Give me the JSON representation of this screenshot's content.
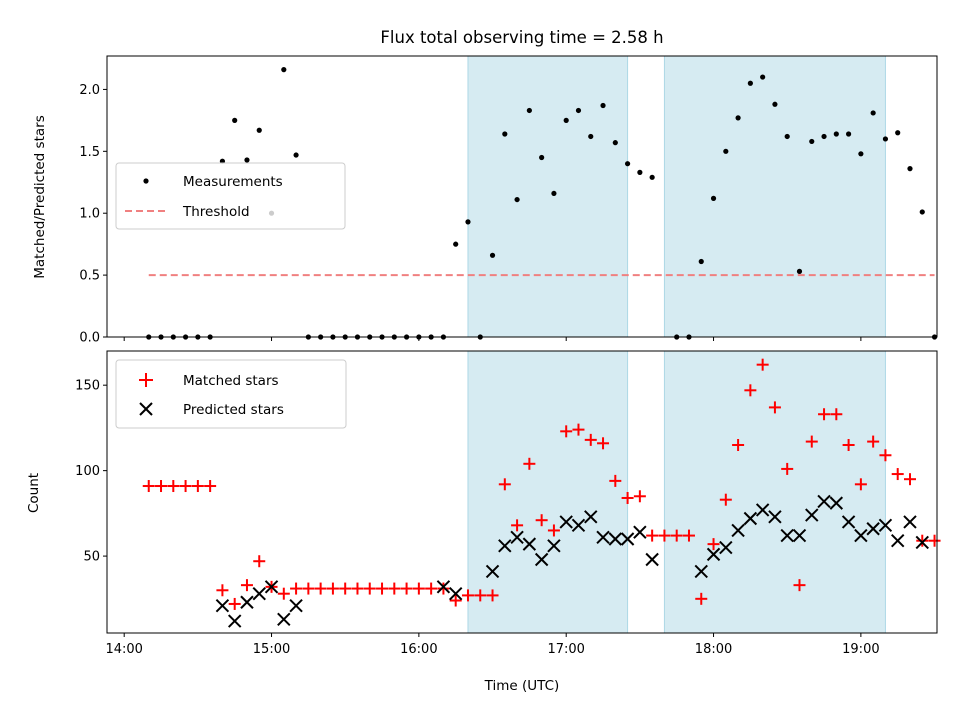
{
  "chart_data": [
    {
      "type": "scatter",
      "title": "Flux total observing time = 2.58 h",
      "xlabel": "",
      "ylabel": "Matched/Predicted stars",
      "xlim": [
        "13:53",
        "19:31"
      ],
      "ylim": [
        0,
        2.27
      ],
      "yticks": [
        0.0,
        0.5,
        1.0,
        1.5,
        2.0
      ],
      "ytick_labels": [
        "0.0",
        "0.5",
        "1.0",
        "1.5",
        "2.0"
      ],
      "xticks": [
        "14:00",
        "15:00",
        "16:00",
        "17:00",
        "18:00",
        "19:00"
      ],
      "grid": false,
      "legend_position": "center-left",
      "shaded_intervals": [
        [
          "16:20",
          "17:25"
        ],
        [
          "17:40",
          "19:10"
        ]
      ],
      "shade_color": "#add8e6",
      "series": [
        {
          "name": "Measurements",
          "kind": "scatter",
          "color": "#000000",
          "points": [
            [
              "14:10",
              0
            ],
            [
              "14:15",
              0
            ],
            [
              "14:20",
              0
            ],
            [
              "14:25",
              0
            ],
            [
              "14:30",
              0
            ],
            [
              "14:35",
              0
            ],
            [
              "14:40",
              1.42
            ],
            [
              "14:45",
              1.75
            ],
            [
              "14:50",
              1.43
            ],
            [
              "14:55",
              1.67
            ],
            [
              "15:00",
              1.0
            ],
            [
              "15:05",
              2.16
            ],
            [
              "15:10",
              1.47
            ],
            [
              "15:15",
              0
            ],
            [
              "15:20",
              0
            ],
            [
              "15:25",
              0
            ],
            [
              "15:30",
              0
            ],
            [
              "15:35",
              0
            ],
            [
              "15:40",
              0
            ],
            [
              "15:45",
              0
            ],
            [
              "15:50",
              0
            ],
            [
              "15:55",
              0
            ],
            [
              "16:00",
              0
            ],
            [
              "16:05",
              0
            ],
            [
              "16:10",
              0
            ],
            [
              "16:15",
              0.75
            ],
            [
              "16:20",
              0.93
            ],
            [
              "16:25",
              0
            ],
            [
              "16:30",
              0.66
            ],
            [
              "16:35",
              1.64
            ],
            [
              "16:40",
              1.11
            ],
            [
              "16:45",
              1.83
            ],
            [
              "16:50",
              1.45
            ],
            [
              "16:55",
              1.16
            ],
            [
              "17:00",
              1.75
            ],
            [
              "17:05",
              1.83
            ],
            [
              "17:10",
              1.62
            ],
            [
              "17:15",
              1.87
            ],
            [
              "17:20",
              1.57
            ],
            [
              "17:25",
              1.4
            ],
            [
              "17:30",
              1.33
            ],
            [
              "17:35",
              1.29
            ],
            [
              "17:45",
              0
            ],
            [
              "17:50",
              0
            ],
            [
              "17:55",
              0.61
            ],
            [
              "18:00",
              1.12
            ],
            [
              "18:05",
              1.5
            ],
            [
              "18:10",
              1.77
            ],
            [
              "18:15",
              2.05
            ],
            [
              "18:20",
              2.1
            ],
            [
              "18:25",
              1.88
            ],
            [
              "18:30",
              1.62
            ],
            [
              "18:35",
              0.53
            ],
            [
              "18:40",
              1.58
            ],
            [
              "18:45",
              1.62
            ],
            [
              "18:50",
              1.64
            ],
            [
              "18:55",
              1.64
            ],
            [
              "19:00",
              1.48
            ],
            [
              "19:05",
              1.81
            ],
            [
              "19:10",
              1.6
            ],
            [
              "19:15",
              1.65
            ],
            [
              "19:20",
              1.36
            ],
            [
              "19:25",
              1.01
            ],
            [
              "19:30",
              0
            ]
          ]
        },
        {
          "name": "Threshold",
          "kind": "dashed-line",
          "color": "#f08080",
          "points": [
            [
              "14:10",
              0.5
            ],
            [
              "19:30",
              0.5
            ]
          ]
        }
      ]
    },
    {
      "type": "scatter",
      "title": "",
      "xlabel": "Time (UTC)",
      "ylabel": "Count",
      "xlim": [
        "13:53",
        "19:31"
      ],
      "ylim": [
        5,
        170
      ],
      "yticks": [
        50,
        100,
        150
      ],
      "ytick_labels": [
        "50",
        "100",
        "150"
      ],
      "xticks": [
        "14:00",
        "15:00",
        "16:00",
        "17:00",
        "18:00",
        "19:00"
      ],
      "xtick_labels": [
        "14:00",
        "15:00",
        "16:00",
        "17:00",
        "18:00",
        "19:00"
      ],
      "grid": false,
      "legend_position": "top-left",
      "shaded_intervals": [
        [
          "16:20",
          "17:25"
        ],
        [
          "17:40",
          "19:10"
        ]
      ],
      "shade_color": "#add8e6",
      "series": [
        {
          "name": "Matched stars",
          "kind": "plus",
          "color": "#ff0000",
          "points": [
            [
              "14:10",
              91
            ],
            [
              "14:15",
              91
            ],
            [
              "14:20",
              91
            ],
            [
              "14:25",
              91
            ],
            [
              "14:30",
              91
            ],
            [
              "14:35",
              91
            ],
            [
              "14:40",
              30
            ],
            [
              "14:45",
              22
            ],
            [
              "14:50",
              33
            ],
            [
              "14:55",
              47
            ],
            [
              "15:00",
              32
            ],
            [
              "15:05",
              28
            ],
            [
              "15:10",
              31
            ],
            [
              "15:15",
              31
            ],
            [
              "15:20",
              31
            ],
            [
              "15:25",
              31
            ],
            [
              "15:30",
              31
            ],
            [
              "15:35",
              31
            ],
            [
              "15:40",
              31
            ],
            [
              "15:45",
              31
            ],
            [
              "15:50",
              31
            ],
            [
              "15:55",
              31
            ],
            [
              "16:00",
              31
            ],
            [
              "16:05",
              31
            ],
            [
              "16:10",
              31
            ],
            [
              "16:15",
              24
            ],
            [
              "16:20",
              27
            ],
            [
              "16:25",
              27
            ],
            [
              "16:30",
              27
            ],
            [
              "16:35",
              92
            ],
            [
              "16:40",
              68
            ],
            [
              "16:45",
              104
            ],
            [
              "16:50",
              71
            ],
            [
              "16:55",
              65
            ],
            [
              "17:00",
              123
            ],
            [
              "17:05",
              124
            ],
            [
              "17:10",
              118
            ],
            [
              "17:15",
              116
            ],
            [
              "17:20",
              94
            ],
            [
              "17:25",
              84
            ],
            [
              "17:30",
              85
            ],
            [
              "17:35",
              62
            ],
            [
              "17:40",
              62
            ],
            [
              "17:45",
              62
            ],
            [
              "17:50",
              62
            ],
            [
              "17:55",
              25
            ],
            [
              "18:00",
              57
            ],
            [
              "18:05",
              83
            ],
            [
              "18:10",
              115
            ],
            [
              "18:15",
              147
            ],
            [
              "18:20",
              162
            ],
            [
              "18:25",
              137
            ],
            [
              "18:30",
              101
            ],
            [
              "18:35",
              33
            ],
            [
              "18:40",
              117
            ],
            [
              "18:45",
              133
            ],
            [
              "18:50",
              133
            ],
            [
              "18:55",
              115
            ],
            [
              "19:00",
              92
            ],
            [
              "19:05",
              117
            ],
            [
              "19:10",
              109
            ],
            [
              "19:15",
              98
            ],
            [
              "19:20",
              95
            ],
            [
              "19:25",
              59
            ],
            [
              "19:30",
              59
            ]
          ]
        },
        {
          "name": "Predicted stars",
          "kind": "x",
          "color": "#000000",
          "points": [
            [
              "14:40",
              21
            ],
            [
              "14:45",
              12
            ],
            [
              "14:50",
              23
            ],
            [
              "14:55",
              28
            ],
            [
              "15:00",
              32
            ],
            [
              "15:05",
              13
            ],
            [
              "15:10",
              21
            ],
            [
              "16:10",
              32
            ],
            [
              "16:15",
              28
            ],
            [
              "16:30",
              41
            ],
            [
              "16:35",
              56
            ],
            [
              "16:40",
              61
            ],
            [
              "16:45",
              57
            ],
            [
              "16:50",
              48
            ],
            [
              "16:55",
              56
            ],
            [
              "17:00",
              70
            ],
            [
              "17:05",
              68
            ],
            [
              "17:10",
              73
            ],
            [
              "17:15",
              61
            ],
            [
              "17:20",
              60
            ],
            [
              "17:25",
              60
            ],
            [
              "17:30",
              64
            ],
            [
              "17:35",
              48
            ],
            [
              "17:55",
              41
            ],
            [
              "18:00",
              51
            ],
            [
              "18:05",
              55
            ],
            [
              "18:10",
              65
            ],
            [
              "18:15",
              72
            ],
            [
              "18:20",
              77
            ],
            [
              "18:25",
              73
            ],
            [
              "18:30",
              62
            ],
            [
              "18:35",
              62
            ],
            [
              "18:40",
              74
            ],
            [
              "18:45",
              82
            ],
            [
              "18:50",
              81
            ],
            [
              "18:55",
              70
            ],
            [
              "19:00",
              62
            ],
            [
              "19:05",
              66
            ],
            [
              "19:10",
              68
            ],
            [
              "19:15",
              59
            ],
            [
              "19:20",
              70
            ],
            [
              "19:25",
              58
            ]
          ]
        }
      ]
    }
  ]
}
